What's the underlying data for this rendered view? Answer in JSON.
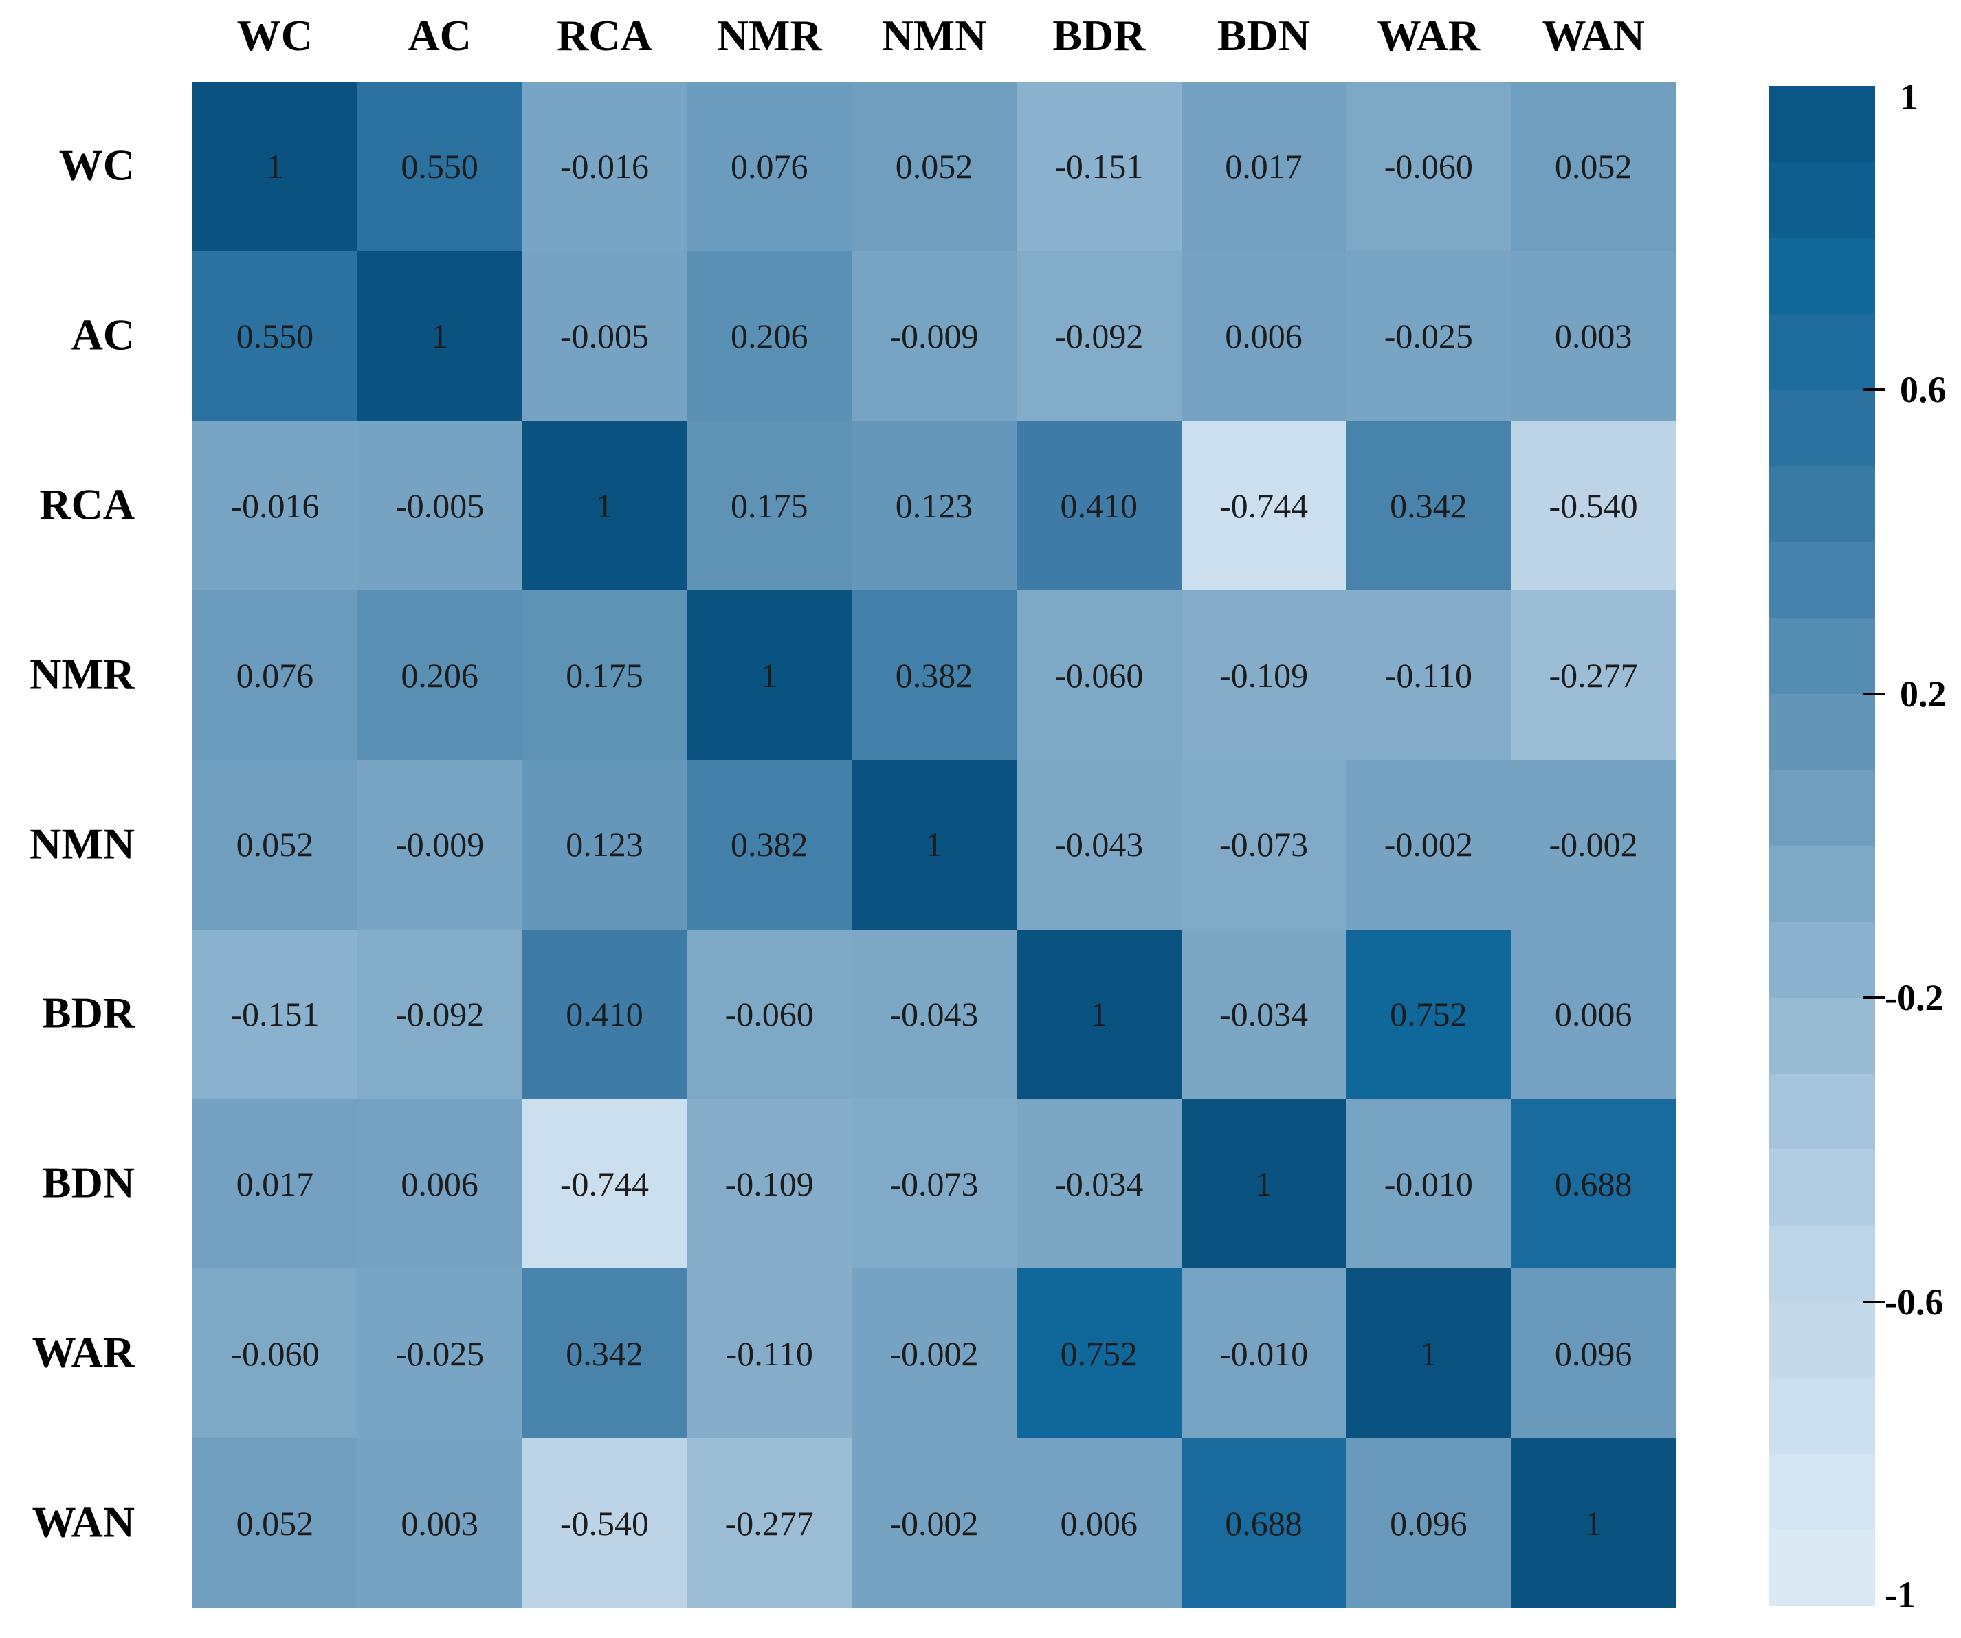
{
  "figure": {
    "kind": "correlation-heatmap",
    "background": "#ffffff",
    "label_color": "#000000",
    "value_text_color": "#1c1c1c"
  },
  "chart_data": {
    "type": "heatmap",
    "title": "",
    "xlabel": "",
    "ylabel": "",
    "grid": false,
    "variables": [
      "WC",
      "AC",
      "RCA",
      "NMR",
      "NMN",
      "BDR",
      "BDN",
      "WAR",
      "WAN"
    ],
    "columns": [
      "WC",
      "AC",
      "RCA",
      "NMR",
      "NMN",
      "BDR",
      "BDN",
      "WAR",
      "WAN"
    ],
    "rows": [
      "WC",
      "AC",
      "RCA",
      "NMR",
      "NMN",
      "BDR",
      "BDN",
      "WAR",
      "WAN"
    ],
    "matrix": [
      [
        "1",
        "0.550",
        "-0.016",
        "0.076",
        "0.052",
        "-0.151",
        "0.017",
        "-0.060",
        "0.052"
      ],
      [
        "0.550",
        "1",
        "-0.005",
        "0.206",
        "-0.009",
        "-0.092",
        "0.006",
        "-0.025",
        "0.003"
      ],
      [
        "-0.016",
        "-0.005",
        "1",
        "0.175",
        "0.123",
        "0.410",
        "-0.744",
        "0.342",
        "-0.540"
      ],
      [
        "0.076",
        "0.206",
        "0.175",
        "1",
        "0.382",
        "-0.060",
        "-0.109",
        "-0.110",
        "-0.277"
      ],
      [
        "0.052",
        "-0.009",
        "0.123",
        "0.382",
        "1",
        "-0.043",
        "-0.073",
        "-0.002",
        "-0.002"
      ],
      [
        "-0.151",
        "-0.092",
        "0.410",
        "-0.060",
        "-0.043",
        "1",
        "-0.034",
        "0.752",
        "0.006"
      ],
      [
        "0.017",
        "0.006",
        "-0.744",
        "-0.109",
        "-0.073",
        "-0.034",
        "1",
        "-0.010",
        "0.688"
      ],
      [
        "-0.060",
        "-0.025",
        "0.342",
        "-0.110",
        "-0.002",
        "0.752",
        "-0.010",
        "1",
        "0.096"
      ],
      [
        "0.052",
        "0.003",
        "-0.540",
        "-0.277",
        "-0.002",
        "0.006",
        "0.688",
        "0.096",
        "1"
      ]
    ],
    "colorbar": {
      "min": -1,
      "max": 1,
      "steps": 20,
      "tick_labels": [
        "1",
        "0.6",
        "0.2",
        "-0.2",
        "-0.6",
        "-1"
      ],
      "tick_values": [
        1,
        0.6,
        0.2,
        -0.2,
        -0.6,
        -1
      ],
      "dash_tick_values": [
        0.6,
        0.2,
        -0.2,
        -0.6
      ],
      "legend_position": "right"
    },
    "colormap_anchors": [
      {
        "v": -1.0,
        "color": "#dfecf7"
      },
      {
        "v": -0.5,
        "color": "#b9d2e5"
      },
      {
        "v": 0.0,
        "color": "#76a3c2"
      },
      {
        "v": 0.5,
        "color": "#3274a1"
      },
      {
        "v": 0.75,
        "color": "#10689a"
      },
      {
        "v": 1.0,
        "color": "#0a5280"
      }
    ]
  }
}
